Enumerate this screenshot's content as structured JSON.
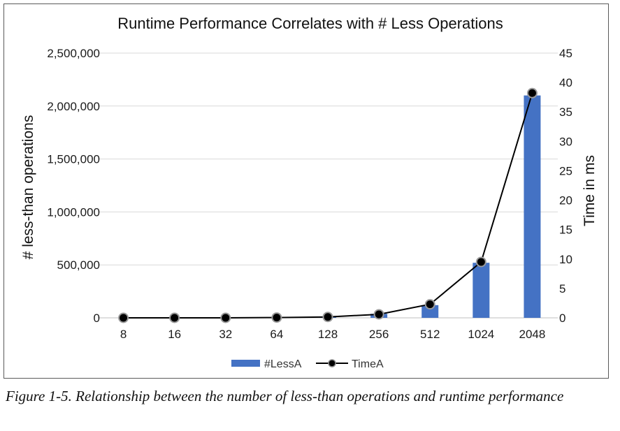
{
  "chart_data": {
    "type": "bar",
    "title": "Runtime Performance Correlates with # Less Operations",
    "categories": [
      "8",
      "16",
      "32",
      "64",
      "128",
      "256",
      "512",
      "1024",
      "2048"
    ],
    "y_left": {
      "label": "# less-than operations",
      "min": 0,
      "max": 2500000,
      "step": 500000,
      "tick_labels": [
        "0",
        "500,000",
        "1,000,000",
        "1,500,000",
        "2,000,000",
        "2,500,000"
      ]
    },
    "y_right": {
      "label": "Time in ms",
      "min": 0,
      "max": 45,
      "step": 5,
      "tick_labels": [
        "0",
        "5",
        "10",
        "15",
        "20",
        "25",
        "30",
        "35",
        "40",
        "45"
      ]
    },
    "grid": true,
    "legend_position": "bottom",
    "series": [
      {
        "name": "#LessA",
        "kind": "bar",
        "axis": "left",
        "color": "#4472c4",
        "values": [
          28,
          64,
          288,
          1600,
          8000,
          38000,
          120000,
          520000,
          2100000
        ]
      },
      {
        "name": "TimeA",
        "kind": "line",
        "axis": "right",
        "color": "#000000",
        "values": [
          0,
          0,
          0,
          0.05,
          0.15,
          0.6,
          2.3,
          9.5,
          38.2
        ]
      }
    ]
  },
  "caption": "Figure 1-5. Relationship between the number of less-than operations and runtime performance"
}
